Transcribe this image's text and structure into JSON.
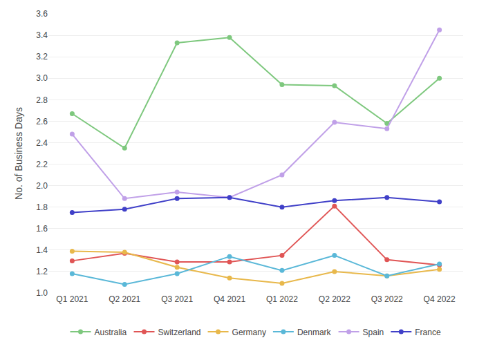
{
  "chart_data": {
    "type": "line",
    "ylabel": "No. of Business Days",
    "categories": [
      "Q1 2021",
      "Q2 2021",
      "Q3 2021",
      "Q4 2021",
      "Q1 2022",
      "Q2 2022",
      "Q3 2022",
      "Q4 2022"
    ],
    "series": [
      {
        "name": "Australia",
        "color": "#7ec87e",
        "values": [
          2.67,
          2.35,
          3.33,
          3.38,
          2.94,
          2.93,
          2.58,
          3.0
        ]
      },
      {
        "name": "Switzerland",
        "color": "#e05555",
        "values": [
          1.3,
          1.37,
          1.29,
          1.29,
          1.35,
          1.81,
          1.31,
          1.26
        ]
      },
      {
        "name": "Germany",
        "color": "#e8b84b",
        "values": [
          1.39,
          1.38,
          1.24,
          1.14,
          1.09,
          1.2,
          1.16,
          1.22
        ]
      },
      {
        "name": "Denmark",
        "color": "#5ab8d8",
        "values": [
          1.18,
          1.08,
          1.18,
          1.34,
          1.21,
          1.35,
          1.16,
          1.27
        ]
      },
      {
        "name": "Spain",
        "color": "#c0a0e8",
        "values": [
          2.48,
          1.88,
          1.94,
          1.89,
          2.1,
          2.59,
          2.53,
          3.45
        ]
      },
      {
        "name": "France",
        "color": "#4040c8",
        "values": [
          1.75,
          1.78,
          1.88,
          1.89,
          1.8,
          1.86,
          1.89,
          1.85
        ]
      }
    ],
    "ylim": [
      1.0,
      3.6
    ],
    "yticks": [
      {
        "value": 1.0,
        "label": "1.0"
      },
      1.2,
      1.4,
      1.6,
      1.8,
      {
        "value": 2.0,
        "label": "2.0"
      },
      2.2,
      2.4,
      2.6,
      2.8,
      {
        "value": 3.0,
        "label": "3.0"
      },
      3.2,
      3.4,
      3.6
    ],
    "grid": true,
    "legend": "bottom",
    "marker": "circle"
  }
}
